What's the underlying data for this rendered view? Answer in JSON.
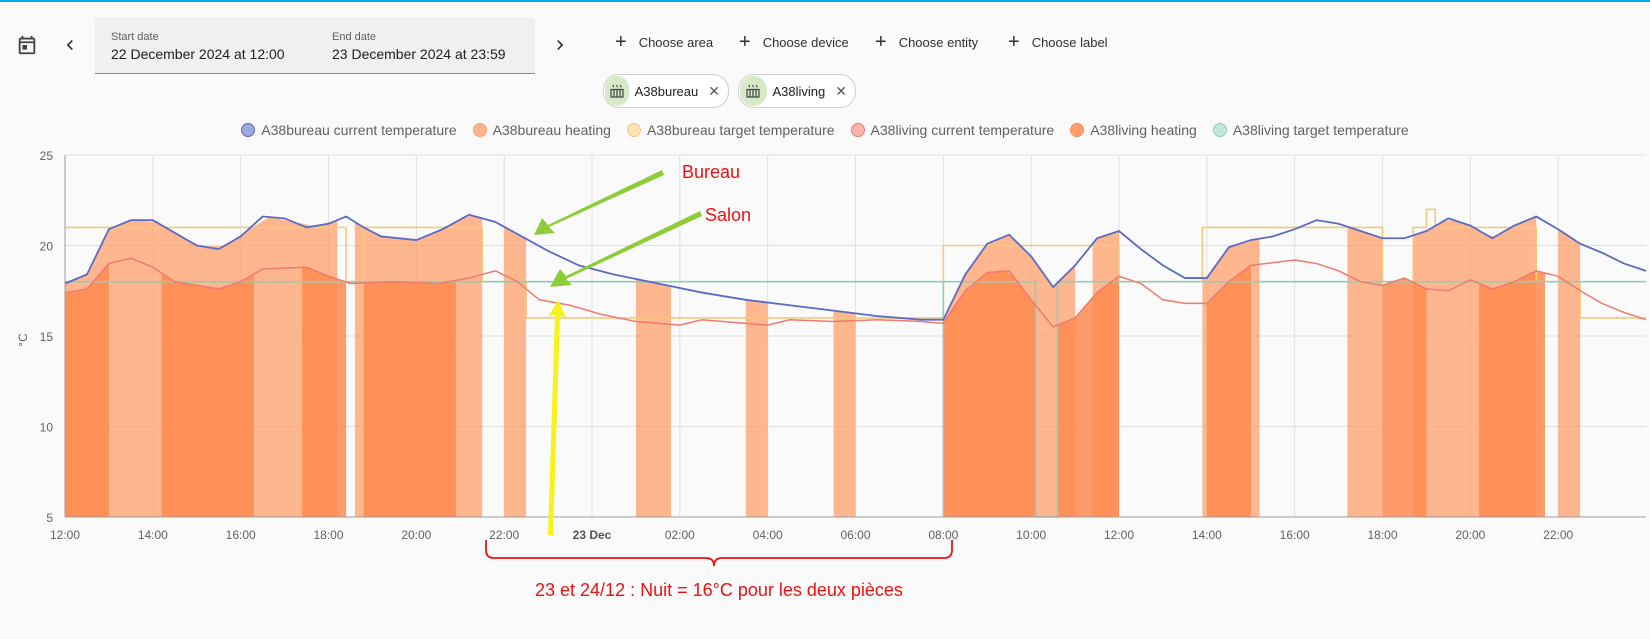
{
  "toolbar": {
    "start_caption": "Start date",
    "start_value": "22 December 2024 at 12:00",
    "end_caption": "End date",
    "end_value": "23 December 2024 at 23:59"
  },
  "chips": [
    {
      "label": "Choose area",
      "color": "#ffd5a8"
    },
    {
      "label": "Choose device",
      "color": "#a9dcf5"
    },
    {
      "label": "Choose entity",
      "color": "#d2e8c3"
    },
    {
      "label": "Choose label",
      "color": "#e0e0e0"
    }
  ],
  "selected": [
    {
      "label": "A38bureau",
      "icon": "radiator-icon"
    },
    {
      "label": "A38living",
      "icon": "radiator-icon"
    }
  ],
  "annotations": {
    "bureau": "Bureau",
    "salon": "Salon",
    "night_note": "23 et 24/12 : Nuit = 16°C pour les deux pièces"
  },
  "chart_data": {
    "type": "line",
    "ylabel": "°C",
    "ylim": [
      5,
      25
    ],
    "yticks": [
      5,
      10,
      15,
      20,
      25
    ],
    "xlim_hours": [
      12,
      48
    ],
    "xticks": [
      {
        "h": 12,
        "label": "12:00"
      },
      {
        "h": 14,
        "label": "14:00"
      },
      {
        "h": 16,
        "label": "16:00"
      },
      {
        "h": 18,
        "label": "18:00"
      },
      {
        "h": 20,
        "label": "20:00"
      },
      {
        "h": 22,
        "label": "22:00"
      },
      {
        "h": 24,
        "label": "23 Dec",
        "bold": true
      },
      {
        "h": 26,
        "label": "02:00"
      },
      {
        "h": 28,
        "label": "04:00"
      },
      {
        "h": 30,
        "label": "06:00"
      },
      {
        "h": 32,
        "label": "08:00"
      },
      {
        "h": 34,
        "label": "10:00"
      },
      {
        "h": 36,
        "label": "12:00"
      },
      {
        "h": 38,
        "label": "14:00"
      },
      {
        "h": 40,
        "label": "16:00"
      },
      {
        "h": 42,
        "label": "18:00"
      },
      {
        "h": 44,
        "label": "20:00"
      },
      {
        "h": 46,
        "label": "22:00"
      }
    ],
    "legend_position": "top",
    "grid": true,
    "series": [
      {
        "name": "A38bureau current temperature",
        "color": "#5c6bc0",
        "points": [
          [
            12,
            17.9
          ],
          [
            12.5,
            18.4
          ],
          [
            13,
            20.9
          ],
          [
            13.5,
            21.4
          ],
          [
            14,
            21.4
          ],
          [
            14.5,
            20.7
          ],
          [
            15,
            20.0
          ],
          [
            15.5,
            19.8
          ],
          [
            16,
            20.5
          ],
          [
            16.5,
            21.6
          ],
          [
            17,
            21.5
          ],
          [
            17.5,
            21.0
          ],
          [
            18,
            21.2
          ],
          [
            18.4,
            21.6
          ],
          [
            18.8,
            21.0
          ],
          [
            19.2,
            20.5
          ],
          [
            20,
            20.3
          ],
          [
            20.6,
            20.9
          ],
          [
            21.2,
            21.7
          ],
          [
            21.8,
            21.3
          ],
          [
            22.4,
            20.5
          ],
          [
            23,
            19.7
          ],
          [
            23.7,
            18.9
          ],
          [
            24.5,
            18.4
          ],
          [
            25.5,
            17.9
          ],
          [
            26.5,
            17.4
          ],
          [
            27.5,
            17.0
          ],
          [
            28.5,
            16.7
          ],
          [
            29.5,
            16.4
          ],
          [
            30.5,
            16.1
          ],
          [
            31.5,
            15.9
          ],
          [
            32,
            15.9
          ],
          [
            32.5,
            18.4
          ],
          [
            33,
            20.1
          ],
          [
            33.5,
            20.6
          ],
          [
            34,
            19.4
          ],
          [
            34.5,
            17.7
          ],
          [
            35,
            18.9
          ],
          [
            35.5,
            20.4
          ],
          [
            36,
            20.8
          ],
          [
            36.5,
            19.8
          ],
          [
            37,
            18.9
          ],
          [
            37.5,
            18.2
          ],
          [
            38,
            18.2
          ],
          [
            38.5,
            19.9
          ],
          [
            39,
            20.3
          ],
          [
            39.5,
            20.5
          ],
          [
            40,
            20.9
          ],
          [
            40.5,
            21.4
          ],
          [
            41,
            21.2
          ],
          [
            41.5,
            20.8
          ],
          [
            42,
            20.4
          ],
          [
            42.5,
            20.4
          ],
          [
            43,
            20.8
          ],
          [
            43.5,
            21.5
          ],
          [
            44,
            21.1
          ],
          [
            44.5,
            20.4
          ],
          [
            45,
            21.1
          ],
          [
            45.5,
            21.6
          ],
          [
            46,
            20.9
          ],
          [
            46.5,
            20.1
          ],
          [
            47,
            19.6
          ],
          [
            47.5,
            19.0
          ],
          [
            48,
            18.6
          ]
        ]
      },
      {
        "name": "A38bureau heating",
        "color": "#ff9f6b",
        "bands": [
          [
            12,
            18.2
          ],
          [
            18.6,
            21.5
          ],
          [
            22,
            22.5
          ],
          [
            25,
            25.8
          ],
          [
            27.5,
            28
          ],
          [
            29.5,
            30
          ],
          [
            32,
            35
          ],
          [
            35.4,
            36
          ],
          [
            37.9,
            39.2
          ],
          [
            41.2,
            42
          ],
          [
            42.7,
            45.5
          ],
          [
            46,
            46.5
          ]
        ]
      },
      {
        "name": "A38bureau target temperature",
        "color": "#f4c97a",
        "points": [
          [
            12,
            21
          ],
          [
            18.4,
            21
          ],
          [
            18.4,
            18
          ],
          [
            18.8,
            18
          ],
          [
            18.8,
            21
          ],
          [
            21.5,
            21
          ],
          [
            21.5,
            18
          ],
          [
            22.5,
            18
          ],
          [
            22.5,
            16
          ],
          [
            32,
            16
          ],
          [
            32,
            20
          ],
          [
            36,
            20
          ],
          [
            36,
            18
          ],
          [
            37.9,
            18
          ],
          [
            37.9,
            21
          ],
          [
            42,
            21
          ],
          [
            42,
            18
          ],
          [
            42.7,
            18
          ],
          [
            42.7,
            21
          ],
          [
            43,
            21
          ],
          [
            43,
            22
          ],
          [
            43.2,
            22
          ],
          [
            43.2,
            21
          ],
          [
            45.5,
            21
          ],
          [
            45.5,
            18
          ],
          [
            46.5,
            18
          ],
          [
            46.5,
            16
          ],
          [
            48,
            16
          ]
        ]
      },
      {
        "name": "A38living current temperature",
        "color": "#ef7a6e",
        "points": [
          [
            12,
            17.4
          ],
          [
            12.5,
            17.6
          ],
          [
            13,
            19.0
          ],
          [
            13.5,
            19.3
          ],
          [
            14,
            18.8
          ],
          [
            14.5,
            18.0
          ],
          [
            15.5,
            17.6
          ],
          [
            16,
            18.0
          ],
          [
            16.5,
            18.7
          ],
          [
            17.5,
            18.8
          ],
          [
            18,
            18.3
          ],
          [
            18.5,
            17.9
          ],
          [
            19.5,
            18.0
          ],
          [
            20.5,
            17.9
          ],
          [
            21.2,
            18.2
          ],
          [
            21.8,
            18.6
          ],
          [
            22.3,
            18.0
          ],
          [
            22.8,
            17.0
          ],
          [
            23.5,
            16.7
          ],
          [
            24.2,
            16.2
          ],
          [
            25,
            15.8
          ],
          [
            26,
            15.6
          ],
          [
            26.5,
            15.9
          ],
          [
            27.5,
            15.7
          ],
          [
            28,
            15.6
          ],
          [
            28.5,
            15.9
          ],
          [
            29.5,
            15.8
          ],
          [
            30.5,
            15.9
          ],
          [
            31.5,
            15.8
          ],
          [
            32,
            15.7
          ],
          [
            32.5,
            17.5
          ],
          [
            33,
            18.5
          ],
          [
            33.5,
            18.6
          ],
          [
            34,
            17.0
          ],
          [
            34.5,
            15.5
          ],
          [
            35,
            16.0
          ],
          [
            35.5,
            17.4
          ],
          [
            36,
            18.3
          ],
          [
            36.5,
            17.9
          ],
          [
            37,
            17.0
          ],
          [
            37.5,
            16.8
          ],
          [
            38,
            16.8
          ],
          [
            38.5,
            18.0
          ],
          [
            39,
            18.9
          ],
          [
            40,
            19.2
          ],
          [
            40.5,
            19.0
          ],
          [
            41,
            18.6
          ],
          [
            41.5,
            18.0
          ],
          [
            42,
            17.8
          ],
          [
            42.5,
            18.2
          ],
          [
            43,
            17.6
          ],
          [
            43.5,
            17.5
          ],
          [
            44,
            18.1
          ],
          [
            44.5,
            17.6
          ],
          [
            45,
            18.0
          ],
          [
            45.5,
            18.6
          ],
          [
            46,
            18.3
          ],
          [
            46.5,
            17.5
          ],
          [
            47,
            16.8
          ],
          [
            47.5,
            16.3
          ],
          [
            48,
            15.9
          ]
        ]
      },
      {
        "name": "A38living heating",
        "color": "#ff8a4f",
        "bands": [
          [
            12,
            13
          ],
          [
            14.2,
            16.3
          ],
          [
            17.4,
            18.4
          ],
          [
            18.8,
            20.9
          ],
          [
            32,
            34.1
          ],
          [
            34.6,
            36
          ],
          [
            38,
            39
          ],
          [
            42,
            43
          ],
          [
            44.2,
            45.7
          ]
        ]
      },
      {
        "name": "A38living target temperature",
        "color": "#8fcfb8",
        "points": [
          [
            12,
            18
          ],
          [
            32,
            18
          ],
          [
            32,
            5
          ],
          [
            32,
            18
          ],
          [
            34.1,
            18
          ],
          [
            34.1,
            5
          ],
          [
            34.6,
            5
          ],
          [
            34.6,
            18
          ],
          [
            48,
            18
          ]
        ]
      }
    ]
  }
}
